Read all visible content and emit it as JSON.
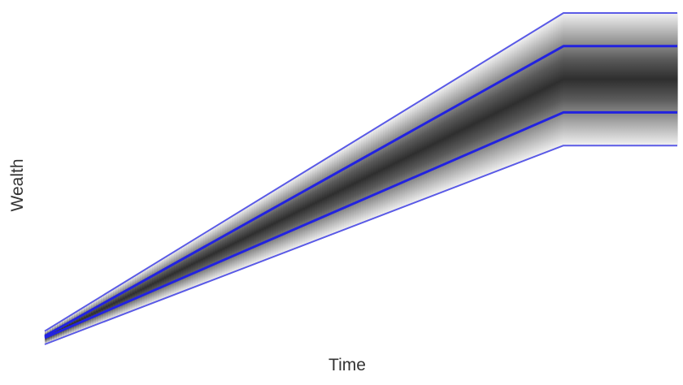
{
  "chart_data": {
    "type": "area",
    "title": "",
    "xlabel": "Time",
    "ylabel": "Wealth",
    "grid": false,
    "legend": "none",
    "xlim": [
      0,
      1
    ],
    "ylim": [
      0,
      1
    ],
    "series": [
      {
        "x": [
          0,
          0.82,
          1
        ],
        "values": [
          0.04,
          1.0,
          1.0
        ]
      },
      {
        "x": [
          0,
          0.82,
          1
        ],
        "values": [
          0.025,
          0.9,
          0.9
        ]
      },
      {
        "x": [
          0,
          0.82,
          1
        ],
        "values": [
          0.02,
          0.7,
          0.7
        ]
      },
      {
        "x": [
          0,
          0.82,
          1
        ],
        "values": [
          0.0,
          0.6,
          0.6
        ]
      }
    ],
    "colors": {
      "line": "#2222e0",
      "outer_line": "#5a5ae6",
      "band_dark": "#2e2e2e",
      "band_light": "#f2f2f2"
    }
  }
}
